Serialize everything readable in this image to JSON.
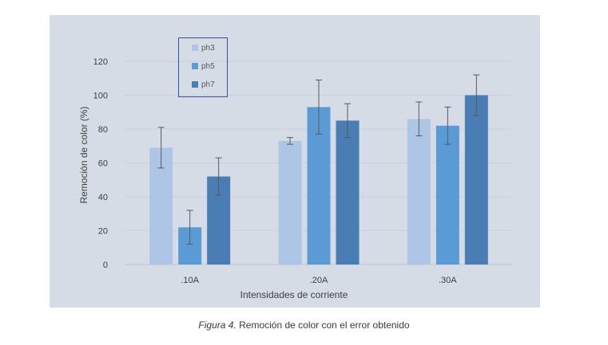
{
  "chart_data": {
    "type": "bar",
    "title": "",
    "xlabel": "Intensidades de corriente",
    "ylabel": "Remoción de color (%)",
    "categories": [
      ".10A",
      ".20A",
      ".30A"
    ],
    "ylim": [
      0,
      120
    ],
    "yticks": [
      0,
      20,
      40,
      60,
      80,
      100,
      120
    ],
    "grid": true,
    "legend_position": "top-left",
    "series": [
      {
        "name": "ph3",
        "color": "#aec6e6",
        "values": [
          69,
          73,
          86
        ],
        "errors": [
          12,
          2,
          10
        ]
      },
      {
        "name": "ph5",
        "color": "#5b9bd5",
        "values": [
          22,
          93,
          82
        ],
        "errors": [
          10,
          16,
          11
        ]
      },
      {
        "name": "ph7",
        "color": "#4a7db4",
        "values": [
          52,
          85,
          100
        ],
        "errors": [
          11,
          10,
          12
        ]
      }
    ]
  },
  "caption": {
    "figure": "Figura 4.",
    "text": " Remoción de color con el error obtenido"
  }
}
